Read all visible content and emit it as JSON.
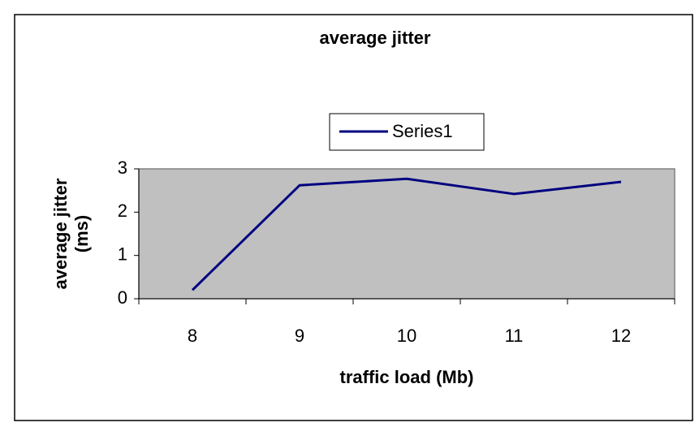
{
  "chart_data": {
    "type": "line",
    "title": "average jitter",
    "xlabel": "traffic load (Mb)",
    "ylabel": [
      "average jitter",
      "(ms)"
    ],
    "categories": [
      "8",
      "9",
      "10",
      "11",
      "12"
    ],
    "series": [
      {
        "name": "Series1",
        "color": "#000080",
        "values": [
          0.2,
          2.62,
          2.77,
          2.42,
          2.7
        ]
      }
    ],
    "ylim": [
      0,
      3
    ],
    "yticks": [
      0,
      1,
      2,
      3
    ],
    "grid": false,
    "legend": "top",
    "plot_background": "#c0c0c0"
  }
}
